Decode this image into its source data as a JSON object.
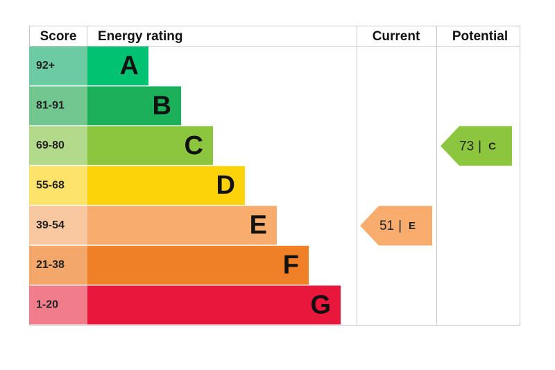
{
  "header": {
    "score": "Score",
    "rating": "Energy rating",
    "current": "Current",
    "potential": "Potential"
  },
  "bands": [
    {
      "score": "92+",
      "letter": "A"
    },
    {
      "score": "81-91",
      "letter": "B"
    },
    {
      "score": "69-80",
      "letter": "C"
    },
    {
      "score": "55-68",
      "letter": "D"
    },
    {
      "score": "39-54",
      "letter": "E"
    },
    {
      "score": "21-38",
      "letter": "F"
    },
    {
      "score": "1-20",
      "letter": "G"
    }
  ],
  "current": {
    "value": 51,
    "separator": "|",
    "letter": "E"
  },
  "potential": {
    "value": 73,
    "separator": "|",
    "letter": "C"
  }
}
